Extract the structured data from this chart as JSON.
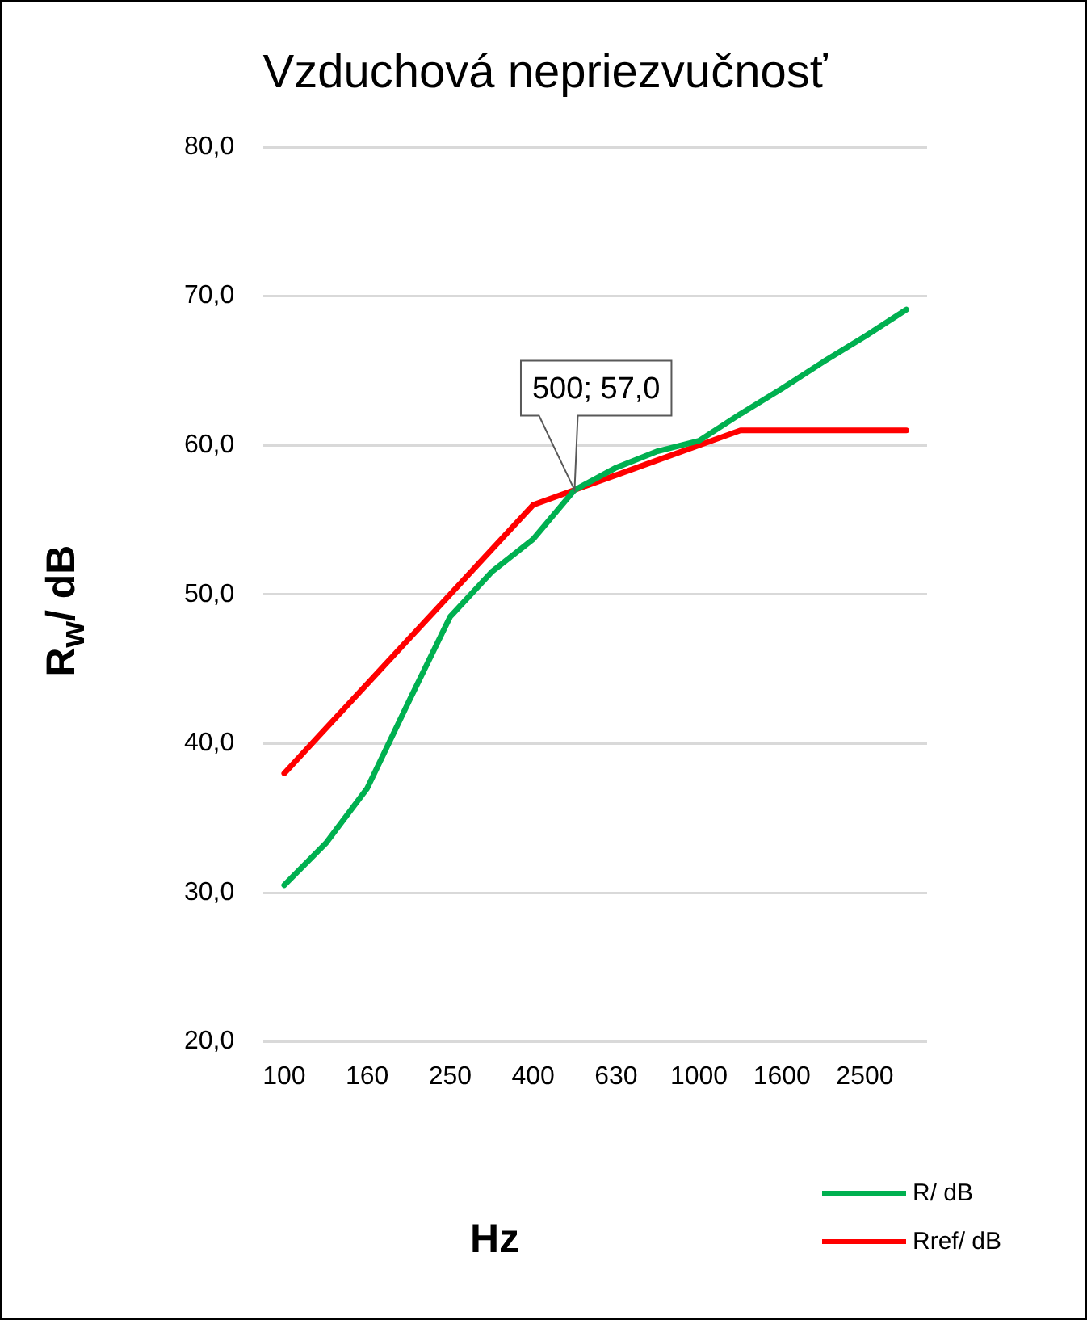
{
  "chart_data": {
    "type": "line",
    "title": "Vzduchová nepriezvučnosť",
    "xlabel": "Hz",
    "ylabel": "R$_{w}$/ dB",
    "categories": [
      "100",
      null,
      "160",
      null,
      "250",
      null,
      "400",
      null,
      "630",
      null,
      "1000",
      null,
      "1600",
      null,
      "2500",
      null
    ],
    "series": [
      {
        "name": "R/ dB",
        "color": "#00b050",
        "values": [
          30.5,
          33.3,
          37,
          42.8,
          48.5,
          51.5,
          53.7,
          57,
          58.5,
          59.6,
          60.3,
          62.1,
          63.8,
          65.6,
          67.3,
          69.1
        ]
      },
      {
        "name": "Rref/ dB",
        "color": "#ff0000",
        "values": [
          38,
          41,
          44,
          47,
          50,
          53,
          56,
          57,
          58,
          59,
          60,
          61,
          61,
          61,
          61,
          61
        ]
      }
    ],
    "ylim": [
      20,
      80
    ],
    "yticks": [
      {
        "value": 20,
        "label": "20,0"
      },
      {
        "value": 30,
        "label": "30,0"
      },
      {
        "value": 40,
        "label": "40,0"
      },
      {
        "value": 50,
        "label": "50,0"
      },
      {
        "value": 60,
        "label": "60,0"
      },
      {
        "value": 70,
        "label": "70,0"
      },
      {
        "value": 80,
        "label": "80,0"
      }
    ],
    "grid": "y",
    "legend": "bottom right",
    "marker": "none",
    "line_style": "solid",
    "annotations": [
      {
        "text": "500; 57,0",
        "y": 57
      }
    ]
  }
}
